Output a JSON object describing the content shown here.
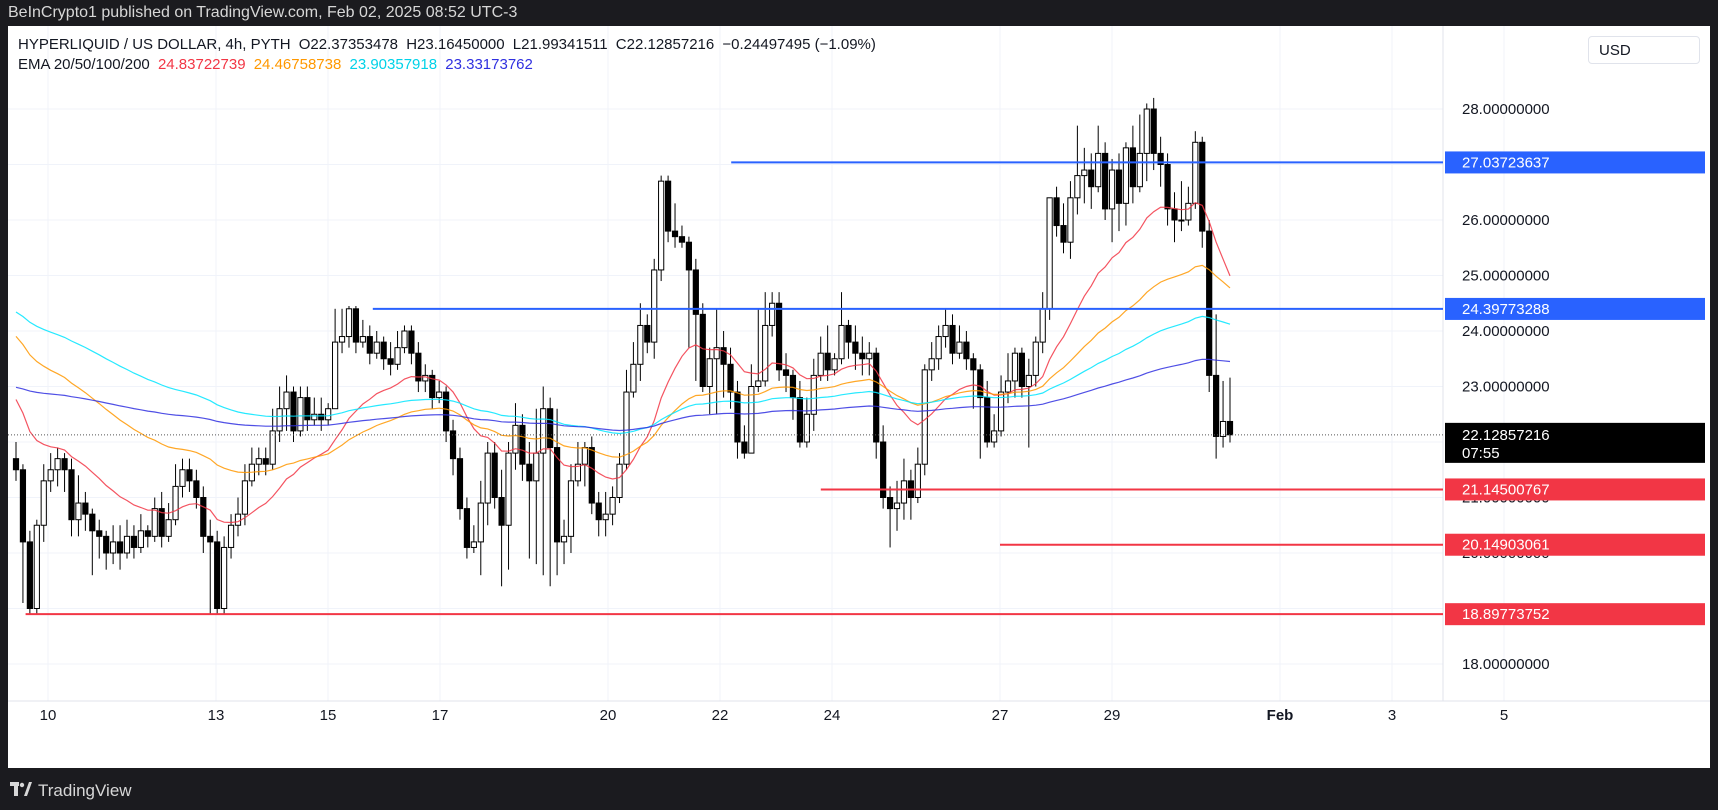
{
  "header": {
    "publisher": "BeInCrypto1 published on TradingView.com, Feb 02, 2025 08:52 UTC-3"
  },
  "footer": {
    "brand": "TradingView"
  },
  "legend": {
    "symbol": "HYPERLIQUID / US DOLLAR, 4h, PYTH",
    "open": "O22.37353478",
    "high": "H23.16450000",
    "low": "L21.99341511",
    "close": "C22.12857216",
    "change": "−0.24497495 (−1.09%)",
    "ema_label": "EMA 20/50/100/200",
    "ema20": "24.83722739",
    "ema50": "24.46758738",
    "ema100": "23.90357918",
    "ema200": "23.33173762"
  },
  "currency": "USD",
  "colors": {
    "ema20": "#f23645",
    "ema50": "#ff9800",
    "ema100": "#00e5ff",
    "ema200": "#3030e0",
    "resistance": "#2962ff",
    "support": "#f23645",
    "candle": "#000000"
  },
  "chart_data": {
    "type": "candlestick",
    "title": "HYPERLIQUID / US DOLLAR, 4h, PYTH",
    "y_axis": {
      "ticks": [
        "18.00000000",
        "19.00000000",
        "20.00000000",
        "21.00000000",
        "22.00000000",
        "23.00000000",
        "24.00000000",
        "25.00000000",
        "26.00000000",
        "27.00000000",
        "28.00000000"
      ],
      "range": [
        17.9,
        29.9
      ]
    },
    "x_axis": {
      "ticks": [
        {
          "label": "10",
          "day": 10
        },
        {
          "label": "13",
          "day": 13
        },
        {
          "label": "15",
          "day": 15
        },
        {
          "label": "17",
          "day": 17
        },
        {
          "label": "20",
          "day": 20
        },
        {
          "label": "22",
          "day": 22
        },
        {
          "label": "24",
          "day": 24
        },
        {
          "label": "27",
          "day": 27
        },
        {
          "label": "29",
          "day": 29
        },
        {
          "label": "Feb",
          "day": 32
        },
        {
          "label": "3",
          "day": 34
        },
        {
          "label": "5",
          "day": 36
        }
      ]
    },
    "last_price": {
      "value": "22.12857216",
      "countdown": "07:55"
    },
    "levels": [
      {
        "value": 27.03723637,
        "label": "27.03723637",
        "kind": "resistance"
      },
      {
        "value": 24.39773288,
        "label": "24.39773288",
        "kind": "resistance"
      },
      {
        "value": 21.14500767,
        "label": "21.14500767",
        "kind": "support"
      },
      {
        "value": 20.14903061,
        "label": "20.14903061",
        "kind": "support"
      },
      {
        "value": 18.89773752,
        "label": "18.89773752",
        "kind": "support"
      }
    ],
    "candles": [
      [
        21.7,
        21.5,
        22.0,
        21.3
      ],
      [
        21.5,
        20.2,
        21.6,
        19.1
      ],
      [
        20.2,
        19.0,
        20.4,
        18.9
      ],
      [
        19.0,
        20.5,
        20.6,
        18.9
      ],
      [
        20.5,
        21.3,
        21.6,
        20.2
      ],
      [
        21.3,
        21.5,
        21.8,
        21.1
      ],
      [
        21.5,
        21.7,
        21.9,
        21.2
      ],
      [
        21.7,
        21.5,
        21.8,
        21.1
      ],
      [
        21.5,
        20.6,
        21.7,
        20.3
      ],
      [
        20.6,
        20.9,
        21.4,
        20.3
      ],
      [
        20.9,
        20.7,
        21.1,
        20.4
      ],
      [
        20.7,
        20.4,
        20.8,
        19.6
      ],
      [
        20.4,
        20.3,
        20.6,
        19.9
      ],
      [
        20.3,
        20.0,
        20.4,
        19.7
      ],
      [
        20.0,
        20.2,
        20.5,
        19.8
      ],
      [
        20.2,
        20.0,
        20.5,
        19.7
      ],
      [
        20.0,
        20.3,
        20.6,
        19.9
      ],
      [
        20.3,
        20.1,
        20.5,
        19.9
      ],
      [
        20.1,
        20.4,
        20.7,
        20.0
      ],
      [
        20.4,
        20.3,
        20.5,
        20.1
      ],
      [
        20.3,
        20.8,
        21.0,
        20.2
      ],
      [
        20.8,
        20.3,
        21.1,
        20.1
      ],
      [
        20.3,
        20.6,
        20.9,
        20.2
      ],
      [
        20.6,
        21.2,
        21.6,
        20.5
      ],
      [
        21.2,
        21.5,
        21.7,
        21.0
      ],
      [
        21.5,
        21.3,
        21.7,
        21.1
      ],
      [
        21.3,
        21.0,
        21.5,
        20.8
      ],
      [
        21.0,
        20.3,
        21.2,
        20.0
      ],
      [
        20.3,
        20.2,
        20.6,
        18.9
      ],
      [
        20.2,
        19.0,
        20.4,
        18.9
      ],
      [
        19.0,
        20.1,
        20.3,
        18.9
      ],
      [
        20.1,
        20.5,
        20.7,
        19.9
      ],
      [
        20.5,
        20.7,
        21.0,
        20.3
      ],
      [
        20.7,
        21.3,
        21.6,
        20.5
      ],
      [
        21.3,
        21.6,
        21.9,
        21.2
      ],
      [
        21.6,
        21.7,
        21.9,
        21.4
      ],
      [
        21.7,
        21.6,
        21.9,
        21.4
      ],
      [
        21.6,
        22.2,
        22.6,
        21.5
      ],
      [
        22.2,
        22.6,
        23.0,
        22.0
      ],
      [
        22.6,
        22.9,
        23.2,
        22.2
      ],
      [
        22.9,
        22.2,
        23.0,
        22.0
      ],
      [
        22.2,
        22.8,
        23.0,
        22.1
      ],
      [
        22.8,
        22.4,
        23.0,
        22.2
      ],
      [
        22.4,
        22.5,
        22.8,
        22.3
      ],
      [
        22.5,
        22.4,
        22.8,
        22.2
      ],
      [
        22.4,
        22.6,
        22.7,
        22.3
      ],
      [
        22.6,
        23.8,
        24.4,
        22.6
      ],
      [
        23.8,
        23.9,
        24.4,
        23.6
      ],
      [
        23.9,
        24.4,
        24.45,
        23.7
      ],
      [
        24.4,
        23.8,
        24.45,
        23.6
      ],
      [
        23.8,
        23.9,
        24.2,
        23.7
      ],
      [
        23.9,
        23.6,
        24.1,
        23.4
      ],
      [
        23.6,
        23.8,
        24.0,
        23.5
      ],
      [
        23.8,
        23.5,
        23.9,
        23.3
      ],
      [
        23.5,
        23.4,
        23.8,
        23.2
      ],
      [
        23.4,
        23.7,
        24.0,
        23.3
      ],
      [
        23.7,
        24.0,
        24.1,
        23.6
      ],
      [
        24.0,
        23.6,
        24.1,
        23.4
      ],
      [
        23.6,
        23.1,
        23.8,
        22.9
      ],
      [
        23.1,
        23.2,
        23.4,
        22.9
      ],
      [
        23.2,
        22.8,
        23.3,
        22.6
      ],
      [
        22.8,
        22.9,
        23.1,
        22.7
      ],
      [
        22.9,
        22.2,
        23.0,
        22.0
      ],
      [
        22.2,
        21.7,
        22.4,
        21.4
      ],
      [
        21.7,
        20.8,
        21.9,
        20.6
      ],
      [
        20.8,
        20.1,
        21.0,
        19.9
      ],
      [
        20.1,
        20.2,
        20.5,
        20.0
      ],
      [
        20.2,
        20.9,
        21.3,
        19.6
      ],
      [
        20.9,
        21.8,
        22.0,
        20.5
      ],
      [
        21.8,
        21.0,
        22.0,
        20.8
      ],
      [
        21.0,
        20.5,
        21.5,
        19.4
      ],
      [
        20.5,
        21.8,
        22.0,
        19.7
      ],
      [
        21.8,
        22.3,
        22.7,
        21.5
      ],
      [
        22.3,
        21.6,
        22.5,
        21.3
      ],
      [
        21.6,
        21.3,
        22.0,
        19.9
      ],
      [
        21.3,
        21.8,
        22.6,
        19.8
      ],
      [
        21.8,
        22.6,
        23.0,
        19.6
      ],
      [
        22.6,
        21.9,
        22.8,
        19.4
      ],
      [
        21.9,
        20.2,
        22.6,
        19.6
      ],
      [
        20.2,
        20.3,
        20.6,
        19.8
      ],
      [
        20.3,
        21.3,
        21.6,
        20.0
      ],
      [
        21.3,
        21.6,
        22.0,
        21.2
      ],
      [
        21.6,
        21.9,
        22.0,
        21.2
      ],
      [
        21.9,
        20.9,
        22.1,
        20.7
      ],
      [
        20.9,
        20.6,
        21.1,
        20.3
      ],
      [
        20.6,
        20.7,
        21.1,
        20.3
      ],
      [
        20.7,
        21.0,
        21.2,
        20.5
      ],
      [
        21.0,
        21.6,
        21.8,
        20.9
      ],
      [
        21.6,
        22.9,
        23.3,
        21.5
      ],
      [
        22.9,
        23.4,
        23.8,
        22.8
      ],
      [
        23.4,
        24.1,
        24.5,
        23.1
      ],
      [
        24.1,
        23.8,
        24.3,
        23.6
      ],
      [
        23.8,
        25.1,
        25.3,
        23.5
      ],
      [
        25.1,
        26.7,
        26.8,
        24.9
      ],
      [
        26.7,
        25.8,
        26.8,
        25.6
      ],
      [
        25.8,
        25.7,
        26.3,
        25.5
      ],
      [
        25.7,
        25.6,
        25.9,
        25.5
      ],
      [
        25.6,
        25.1,
        25.7,
        23.7
      ],
      [
        25.1,
        24.3,
        25.3,
        23.1
      ],
      [
        24.3,
        23.0,
        24.5,
        22.9
      ],
      [
        23.0,
        23.5,
        23.7,
        22.5
      ],
      [
        23.5,
        23.7,
        24.4,
        22.5
      ],
      [
        23.7,
        23.4,
        24.0,
        22.8
      ],
      [
        23.4,
        22.9,
        23.7,
        22.6
      ],
      [
        22.9,
        22.0,
        23.1,
        21.7
      ],
      [
        22.0,
        21.8,
        22.3,
        21.7
      ],
      [
        21.8,
        23.0,
        23.4,
        21.8
      ],
      [
        23.0,
        23.1,
        24.4,
        22.9
      ],
      [
        23.1,
        24.1,
        24.7,
        23.0
      ],
      [
        24.1,
        24.5,
        24.7,
        23.9
      ],
      [
        24.5,
        23.3,
        24.7,
        23.1
      ],
      [
        23.3,
        23.2,
        23.6,
        22.9
      ],
      [
        23.2,
        22.8,
        23.3,
        22.4
      ],
      [
        22.8,
        22.0,
        23.1,
        21.9
      ],
      [
        22.0,
        22.5,
        22.8,
        21.9
      ],
      [
        22.5,
        23.2,
        23.5,
        22.2
      ],
      [
        23.2,
        23.6,
        23.9,
        23.1
      ],
      [
        23.6,
        23.3,
        24.1,
        23.1
      ],
      [
        23.3,
        23.5,
        23.6,
        23.2
      ],
      [
        23.5,
        24.1,
        24.7,
        23.4
      ],
      [
        24.1,
        23.8,
        24.2,
        23.5
      ],
      [
        23.8,
        23.6,
        24.1,
        23.3
      ],
      [
        23.6,
        23.5,
        23.9,
        23.2
      ],
      [
        23.5,
        23.6,
        23.8,
        23.2
      ],
      [
        23.6,
        22.0,
        23.7,
        21.7
      ],
      [
        22.0,
        21.0,
        22.3,
        20.8
      ],
      [
        21.0,
        20.8,
        21.2,
        20.1
      ],
      [
        20.8,
        20.9,
        21.3,
        20.4
      ],
      [
        20.9,
        21.3,
        21.7,
        20.6
      ],
      [
        21.3,
        21.0,
        21.5,
        20.6
      ],
      [
        21.0,
        21.6,
        21.9,
        20.9
      ],
      [
        21.6,
        23.3,
        23.4,
        21.4
      ],
      [
        23.3,
        23.5,
        23.8,
        23.1
      ],
      [
        23.5,
        23.9,
        24.1,
        23.3
      ],
      [
        23.9,
        24.1,
        24.4,
        23.7
      ],
      [
        24.1,
        23.6,
        24.3,
        23.4
      ],
      [
        23.6,
        23.8,
        24.1,
        23.5
      ],
      [
        23.8,
        23.5,
        24.0,
        23.3
      ],
      [
        23.5,
        23.3,
        23.6,
        22.6
      ],
      [
        23.3,
        22.8,
        23.4,
        21.7
      ],
      [
        22.8,
        22.0,
        23.1,
        21.9
      ],
      [
        22.0,
        22.2,
        22.5,
        21.9
      ],
      [
        22.2,
        22.9,
        23.2,
        22.1
      ],
      [
        22.9,
        23.1,
        23.6,
        22.7
      ],
      [
        23.1,
        23.6,
        23.7,
        22.8
      ],
      [
        23.6,
        23.0,
        23.7,
        22.8
      ],
      [
        23.0,
        23.2,
        23.5,
        21.9
      ],
      [
        23.2,
        23.8,
        23.9,
        23.0
      ],
      [
        23.8,
        24.4,
        24.7,
        23.6
      ],
      [
        24.4,
        26.4,
        26.4,
        24.2
      ],
      [
        26.4,
        25.9,
        26.6,
        25.7
      ],
      [
        25.9,
        25.6,
        26.3,
        25.4
      ],
      [
        25.6,
        26.4,
        26.7,
        25.3
      ],
      [
        26.4,
        26.8,
        27.7,
        26.1
      ],
      [
        26.8,
        26.9,
        27.3,
        26.3
      ],
      [
        26.9,
        26.6,
        27.2,
        26.2
      ],
      [
        26.6,
        27.2,
        27.7,
        26.5
      ],
      [
        27.2,
        26.2,
        27.4,
        26.0
      ],
      [
        26.2,
        26.9,
        27.1,
        25.6
      ],
      [
        26.9,
        26.3,
        27.2,
        25.8
      ],
      [
        26.3,
        27.3,
        27.4,
        25.9
      ],
      [
        27.3,
        26.6,
        27.7,
        26.3
      ],
      [
        26.6,
        27.2,
        27.9,
        26.5
      ],
      [
        27.2,
        28.0,
        28.1,
        26.7
      ],
      [
        28.0,
        27.2,
        28.2,
        26.9
      ],
      [
        27.2,
        27.0,
        27.5,
        26.6
      ],
      [
        27.0,
        26.2,
        27.2,
        25.9
      ],
      [
        26.2,
        26.0,
        26.5,
        25.6
      ],
      [
        26.0,
        26.0,
        26.7,
        25.8
      ],
      [
        26.0,
        26.3,
        26.6,
        25.9
      ],
      [
        26.3,
        27.4,
        27.6,
        26.2
      ],
      [
        27.4,
        25.8,
        27.5,
        25.5
      ],
      [
        25.8,
        23.2,
        26.0,
        22.9
      ],
      [
        23.2,
        22.1,
        24.3,
        21.7
      ],
      [
        22.1,
        22.37,
        23.1,
        21.9
      ],
      [
        22.37,
        22.13,
        23.16,
        21.99
      ]
    ]
  }
}
